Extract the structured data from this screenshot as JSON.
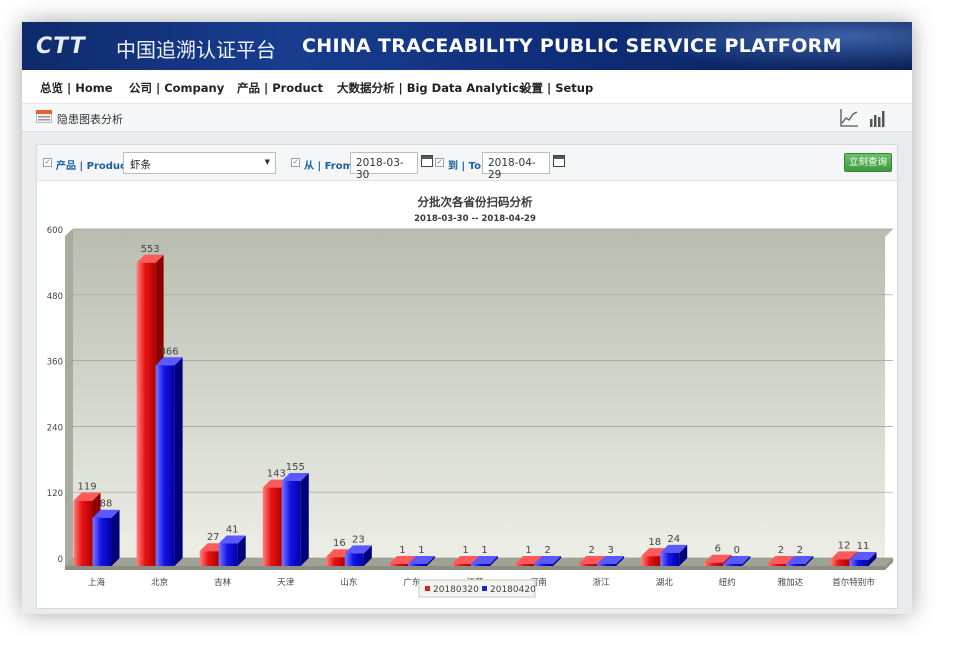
{
  "banner": {
    "logo": "CTT",
    "title_cn": "中国追溯认证平台",
    "title_en": "CHINA TRACEABILITY PUBLIC SERVICE PLATFORM"
  },
  "nav": {
    "items": [
      {
        "label": "总览 | Home"
      },
      {
        "label": "公司 | Company"
      },
      {
        "label": "产品 | Product"
      },
      {
        "label": "大数据分析 | Big Data Analytics"
      },
      {
        "label": "设置 | Setup"
      }
    ]
  },
  "subbar": {
    "title": "隐患图表分析",
    "icons": [
      "line-chart-icon",
      "bar-chart-icon"
    ]
  },
  "filters": {
    "product_label": "产品 | Product:",
    "product_value": "虾条",
    "from_label": "从 | From:",
    "from_value": "2018-03-30",
    "to_label": "到 | To:",
    "to_value": "2018-04-29",
    "query_button": "立刻查询"
  },
  "colors": {
    "series_red": "#e02020",
    "series_blue": "#2020e0",
    "plot_bg": "#c8ccc0"
  },
  "chart_data": {
    "type": "bar",
    "title": "分批次各省份扫码分析",
    "subtitle": "2018-03-30 -- 2018-04-29",
    "categories": [
      "上海",
      "北京",
      "吉林",
      "天津",
      "山东",
      "广东",
      "江苏",
      "河南",
      "浙江",
      "湖北",
      "纽约",
      "雅加达",
      "首尔特别市"
    ],
    "series": [
      {
        "name": "20180320",
        "values": [
          119,
          553,
          27,
          143,
          16,
          1,
          1,
          1,
          2,
          18,
          6,
          2,
          12
        ]
      },
      {
        "name": "20180420",
        "values": [
          88,
          366,
          41,
          155,
          23,
          1,
          1,
          2,
          3,
          24,
          0,
          2,
          11
        ]
      }
    ],
    "ylim": [
      0,
      600
    ],
    "yticks": [
      0,
      120,
      240,
      360,
      480,
      600
    ],
    "grid": true,
    "legend": "bottom"
  }
}
